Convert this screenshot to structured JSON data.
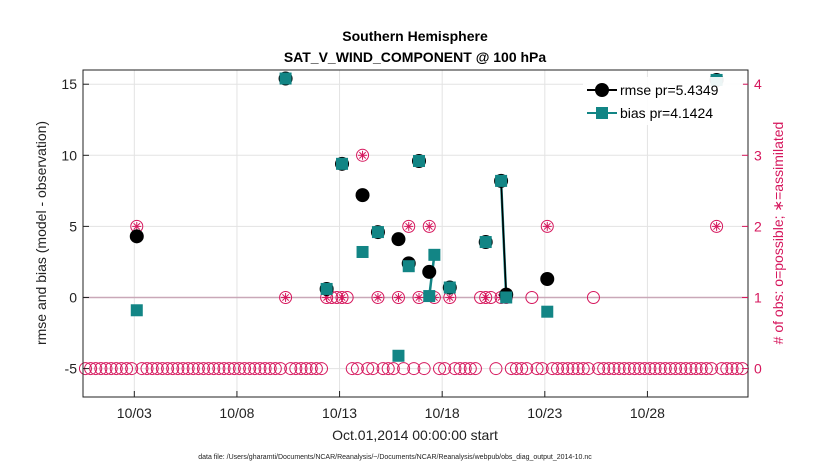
{
  "chart_data": {
    "type": "scatter",
    "title": "Southern Hemisphere",
    "subtitle": "SAT_V_WIND_COMPONENT @ 100 hPa",
    "xlabel": "Oct.01,2014 00:00:00 start",
    "ylabel": "rmse and bias (model - observation)",
    "ylabel_right": "# of obs: o=possible; ∗=assimilated",
    "footnote": "data file: /Users/gharamti/Documents/NCAR/Reanalysis/~/Documents/NCAR/Reanalysis/webpub/obs_diag_output_2014-10.nc",
    "xlim": [
      0.5,
      32.9
    ],
    "ylim": [
      -7,
      16
    ],
    "ylim_right": [
      -0.4,
      4.2
    ],
    "x_ticks": [
      3,
      8,
      13,
      18,
      23,
      28
    ],
    "x_tick_labels": [
      "10/03",
      "10/08",
      "10/13",
      "10/18",
      "10/23",
      "10/28"
    ],
    "y_ticks": [
      -5,
      0,
      5,
      10,
      15
    ],
    "y_tick_labels": [
      "-5",
      "0",
      "5",
      "10",
      "15"
    ],
    "y_right_ticks": [
      0,
      1,
      2,
      3,
      4
    ],
    "y_right_tick_labels": [
      "0",
      "1",
      "2",
      "3",
      "4"
    ],
    "colors": {
      "rmse": "#000000",
      "bias": "#128585",
      "obs": "#d6175d",
      "zero_line": "#c9a8b8",
      "grid": "#e3e3e3"
    },
    "series": [
      {
        "name": "rmse pr=5.4349",
        "marker": "circle",
        "points": [
          [
            3.12,
            4.3
          ],
          [
            10.37,
            15.4
          ],
          [
            12.37,
            0.6
          ],
          [
            13.12,
            9.4
          ],
          [
            14.12,
            7.2
          ],
          [
            14.87,
            4.6
          ],
          [
            15.87,
            4.1
          ],
          [
            16.37,
            2.4
          ],
          [
            16.87,
            9.6
          ],
          [
            17.37,
            1.8
          ],
          [
            18.37,
            0.7
          ],
          [
            20.12,
            3.9
          ],
          [
            20.87,
            8.2
          ],
          [
            21.12,
            0.2
          ],
          [
            23.12,
            1.3
          ],
          [
            31.37,
            15.3
          ]
        ],
        "segments": [
          [
            [
              20.87,
              8.2
            ],
            [
              21.12,
              0.2
            ]
          ]
        ]
      },
      {
        "name": "bias pr=4.1424",
        "marker": "square",
        "points": [
          [
            3.12,
            -0.9
          ],
          [
            10.37,
            15.4
          ],
          [
            12.37,
            0.6
          ],
          [
            13.12,
            9.4
          ],
          [
            14.12,
            3.2
          ],
          [
            14.87,
            4.6
          ],
          [
            15.87,
            -4.1
          ],
          [
            16.37,
            2.2
          ],
          [
            16.87,
            9.6
          ],
          [
            17.37,
            0.1
          ],
          [
            17.62,
            3.0
          ],
          [
            18.37,
            0.7
          ],
          [
            20.12,
            3.9
          ],
          [
            20.87,
            8.2
          ],
          [
            21.12,
            0.0
          ],
          [
            23.12,
            -1.0
          ],
          [
            31.37,
            15.3
          ]
        ],
        "segments": [
          [
            [
              20.87,
              8.2
            ],
            [
              21.12,
              0.0
            ]
          ],
          [
            [
              17.37,
              0.1
            ],
            [
              17.62,
              3.0
            ]
          ]
        ]
      }
    ],
    "obs_possible_x_start": 0.62,
    "obs_possible_x_step": 0.25,
    "obs_possible_count": 129,
    "obs_possible_nonzero": [
      [
        3.12,
        2
      ],
      [
        10.37,
        1
      ],
      [
        12.37,
        1
      ],
      [
        12.62,
        1
      ],
      [
        12.87,
        1
      ],
      [
        13.12,
        1
      ],
      [
        13.37,
        1
      ],
      [
        14.12,
        3
      ],
      [
        14.87,
        1
      ],
      [
        15.87,
        1
      ],
      [
        16.37,
        2
      ],
      [
        16.87,
        1
      ],
      [
        17.37,
        2
      ],
      [
        17.62,
        1
      ],
      [
        18.37,
        1
      ],
      [
        19.87,
        1
      ],
      [
        20.12,
        1
      ],
      [
        20.37,
        1
      ],
      [
        20.87,
        1
      ],
      [
        21.12,
        1
      ],
      [
        22.37,
        1
      ],
      [
        23.12,
        2
      ],
      [
        25.37,
        1
      ],
      [
        31.37,
        2
      ]
    ],
    "obs_assimilated": [
      [
        3.12,
        2
      ],
      [
        10.37,
        1
      ],
      [
        12.37,
        1
      ],
      [
        13.12,
        1
      ],
      [
        14.12,
        3
      ],
      [
        14.87,
        1
      ],
      [
        15.87,
        1
      ],
      [
        16.37,
        2
      ],
      [
        16.87,
        1
      ],
      [
        17.37,
        2
      ],
      [
        17.62,
        1
      ],
      [
        18.37,
        1
      ],
      [
        20.12,
        1
      ],
      [
        20.87,
        1
      ],
      [
        21.12,
        1
      ],
      [
        23.12,
        2
      ],
      [
        31.37,
        2
      ]
    ],
    "legend": {
      "position": "top-right"
    }
  }
}
